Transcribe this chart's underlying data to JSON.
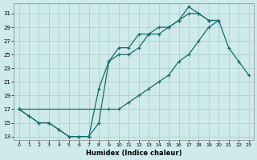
{
  "xlabel": "Humidex (Indice chaleur)",
  "background_color": "#ceeaea",
  "grid_color": "#add0d0",
  "line_color": "#1a6b6b",
  "xlim": [
    -0.5,
    23.5
  ],
  "ylim": [
    12.5,
    32.5
  ],
  "xticks": [
    0,
    1,
    2,
    3,
    4,
    5,
    6,
    7,
    8,
    9,
    10,
    11,
    12,
    13,
    14,
    15,
    16,
    17,
    18,
    19,
    20,
    21,
    22,
    23
  ],
  "yticks": [
    13,
    15,
    17,
    19,
    21,
    23,
    25,
    27,
    29,
    31
  ],
  "line1_x": [
    0,
    1,
    2,
    3,
    4,
    5,
    6,
    7,
    8,
    9,
    10,
    11,
    12,
    13,
    14,
    15,
    16,
    17,
    18,
    19,
    20
  ],
  "line1_y": [
    17,
    16,
    15,
    15,
    14,
    13,
    13,
    13,
    20,
    24,
    26,
    26,
    28,
    28,
    29,
    29,
    30,
    32,
    31,
    30,
    30
  ],
  "line2_x": [
    0,
    1,
    2,
    3,
    4,
    5,
    6,
    7,
    8,
    9,
    10,
    11,
    12,
    13,
    14,
    15,
    16,
    17,
    18,
    19,
    20
  ],
  "line2_y": [
    17,
    16,
    15,
    15,
    14,
    13,
    13,
    13,
    15,
    24,
    25,
    25,
    26,
    28,
    28,
    29,
    30,
    31,
    31,
    30,
    30
  ],
  "line3_x": [
    0,
    9,
    10,
    11,
    12,
    13,
    14,
    15,
    16,
    17,
    18,
    19,
    20,
    21,
    22,
    23
  ],
  "line3_y": [
    17,
    17,
    17,
    18,
    19,
    20,
    21,
    22,
    24,
    25,
    27,
    29,
    30,
    26,
    24,
    22
  ]
}
